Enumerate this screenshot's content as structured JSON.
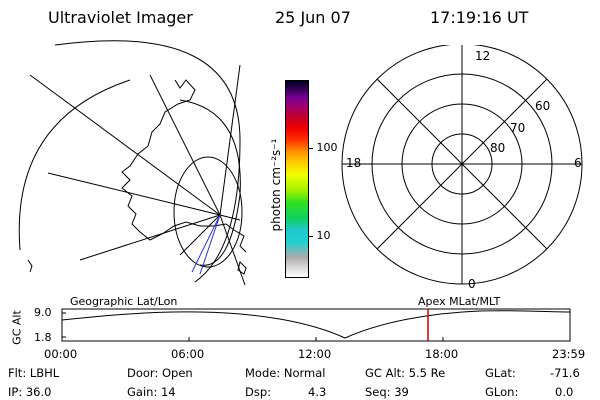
{
  "header": {
    "instrument": "Ultraviolet Imager",
    "date": "25 Jun 07",
    "time": "17:19:16 UT"
  },
  "colorbar": {
    "label": "photon cm⁻²s⁻¹",
    "ticks": [
      "100",
      "10"
    ],
    "colors": [
      "#ffffff",
      "#d8d8d8",
      "#aaaaaa",
      "#20d0d0",
      "#20c8c8",
      "#10d060",
      "#30e020",
      "#a0f000",
      "#f0ff00",
      "#ffd000",
      "#ff9000",
      "#ff3000",
      "#ee0000",
      "#c00030",
      "#a00070",
      "#700090",
      "#300050",
      "#000020"
    ]
  },
  "polar_plot": {
    "mlt_labels": [
      "12",
      "18",
      "6",
      "0"
    ],
    "lat_labels": [
      "60",
      "70",
      "80"
    ]
  },
  "timeline": {
    "left_label": "Geographic Lat/Lon",
    "right_label": "Apex MLat/MLT",
    "axis_title": "GC Alt",
    "y_ticks": [
      "9.0",
      "1.8"
    ],
    "x_ticks": [
      "00:00",
      "06:00",
      "12:00",
      "18:00",
      "23:59"
    ],
    "marker_color": "#cc0000"
  },
  "info": {
    "flt": "Flt: LBHL",
    "door": "Door: Open",
    "mode": "Mode: Normal",
    "gcalt": "GC Alt: 5.5 Re",
    "glat_label": "GLat:",
    "glat_value": "-71.6",
    "ip": "IP: 36.0",
    "gain": "Gain: 14",
    "dsp_label": "Dsp:",
    "dsp_value": "4.3",
    "seq": "Seq: 39",
    "glon_label": "GLon:",
    "glon_value": "0.0"
  }
}
